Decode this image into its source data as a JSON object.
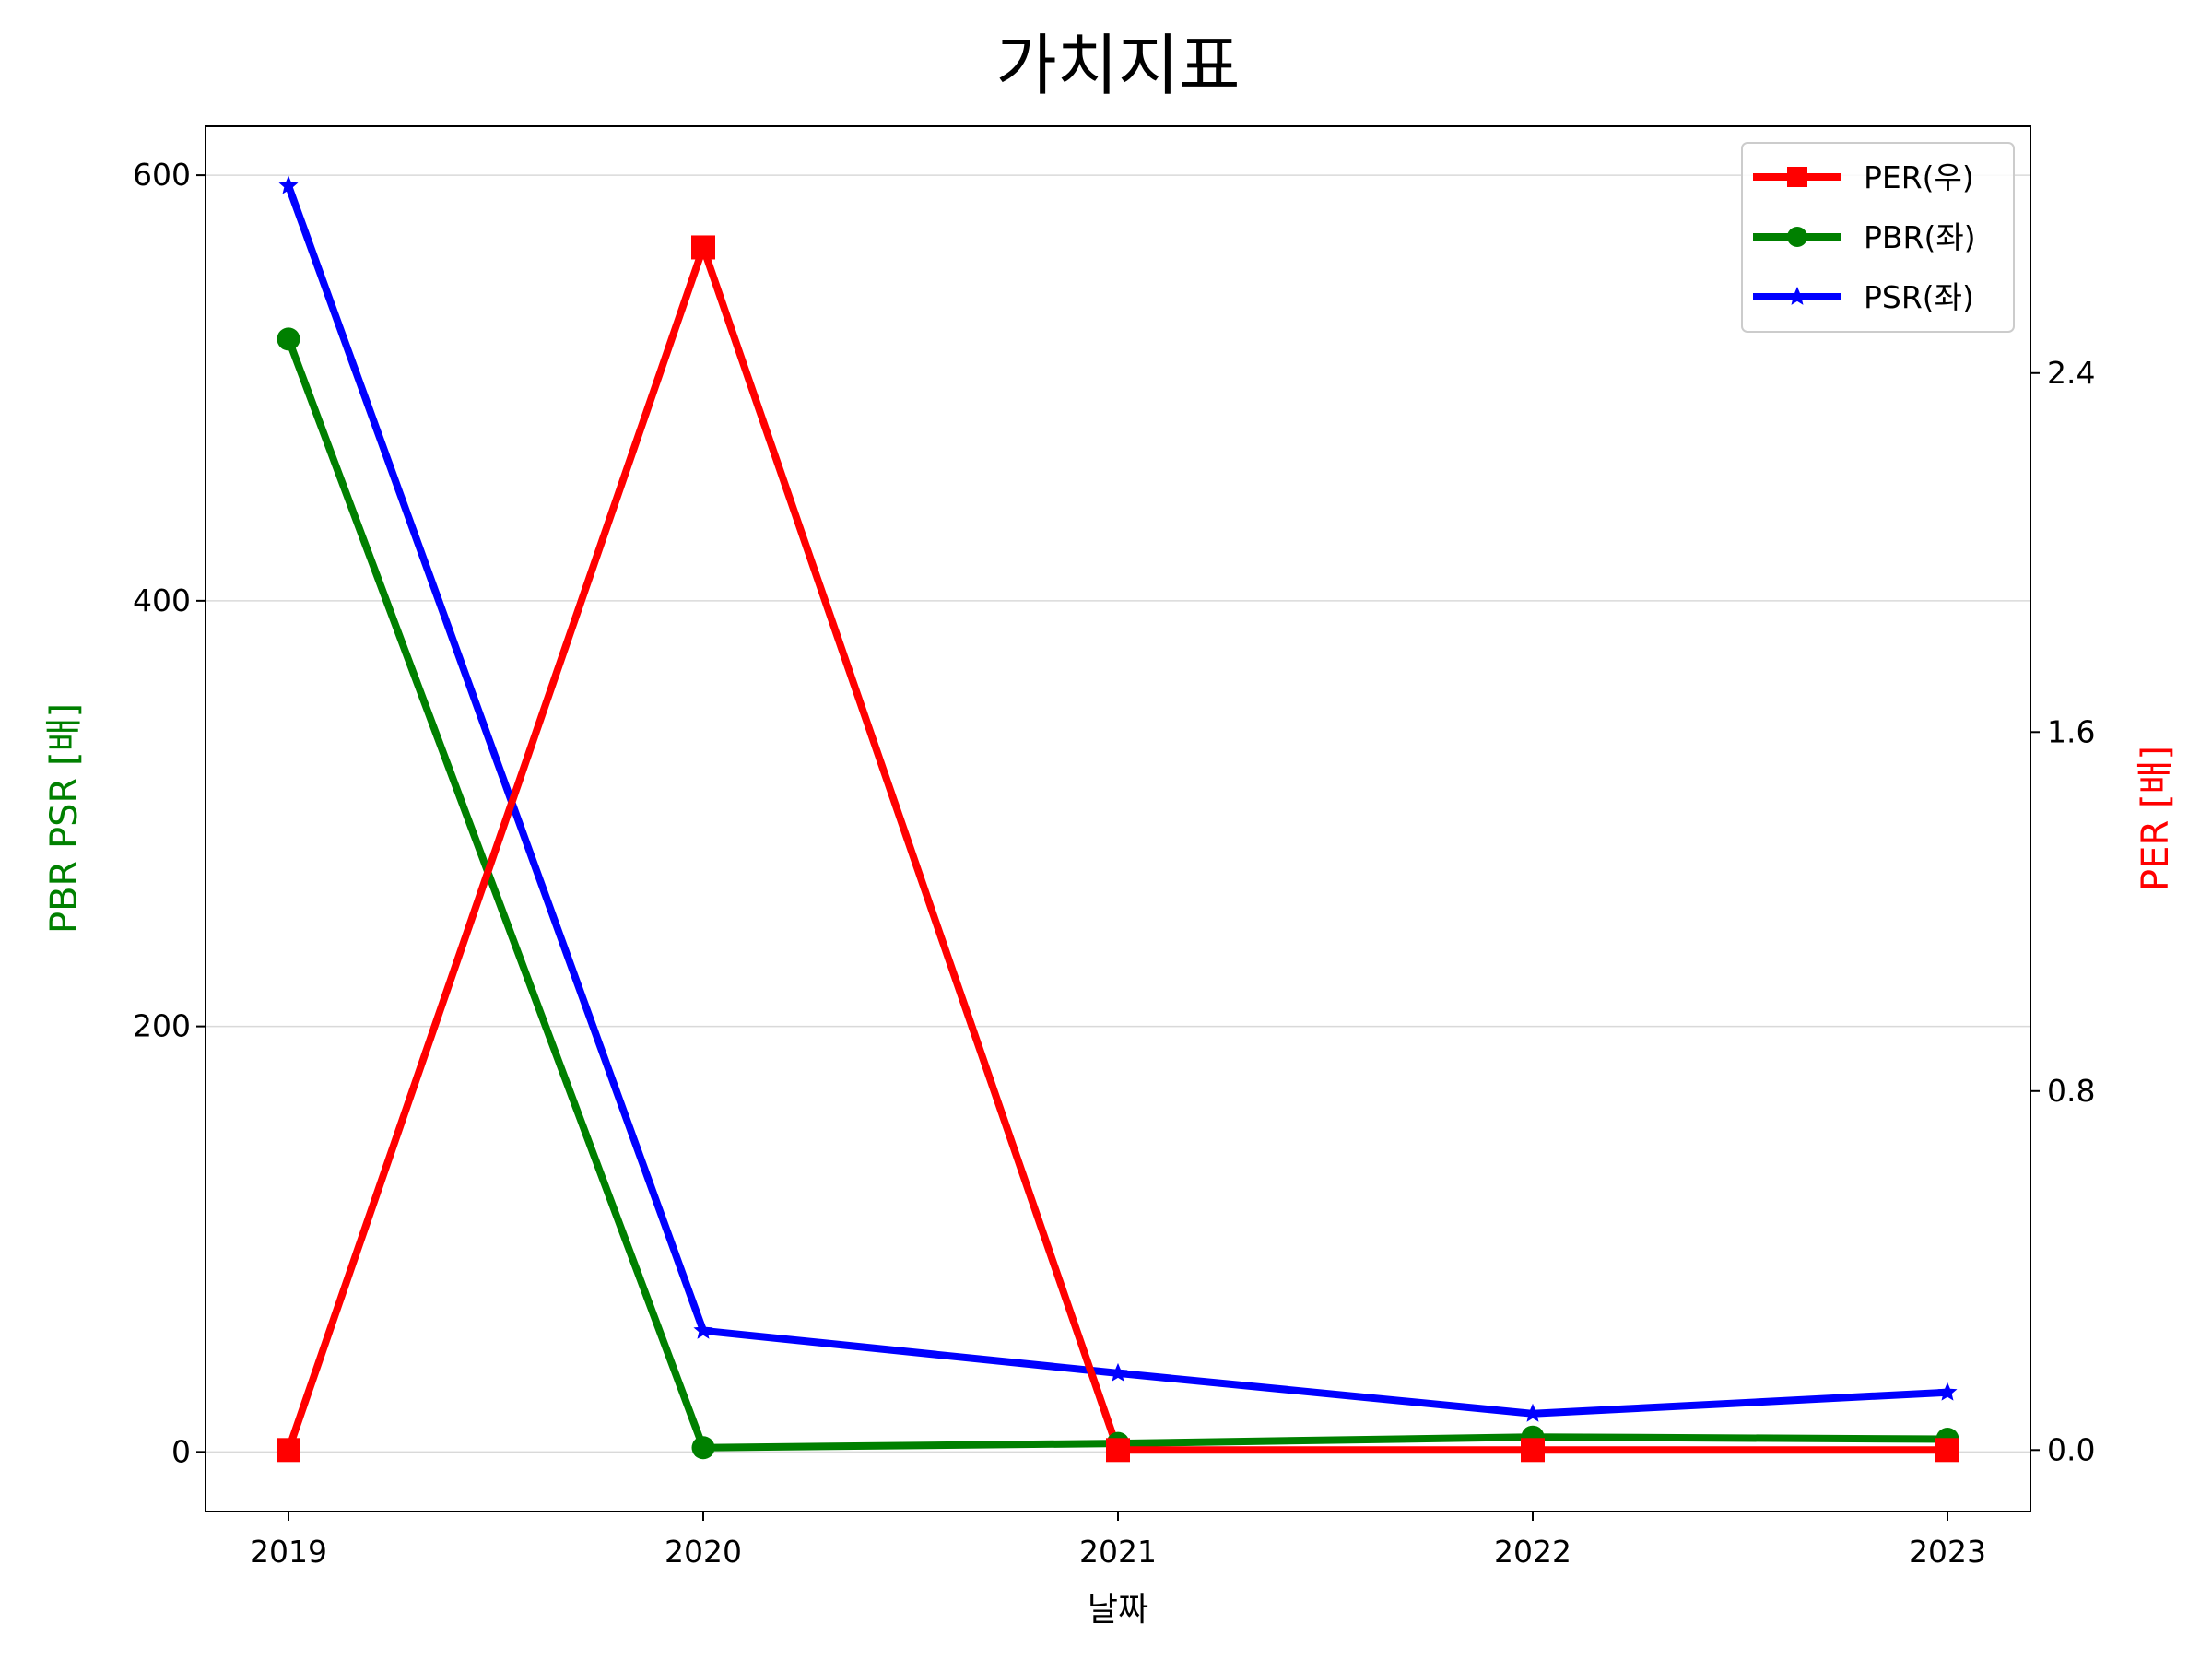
{
  "chart_data": {
    "type": "line",
    "title": "가치지표",
    "xlabel": "날짜",
    "ylabel_left": "PBR PSR [배]",
    "ylabel_right": "PER [배]",
    "ylabel_left_color": "#008000",
    "ylabel_right_color": "#ff0000",
    "categories": [
      "2019",
      "2020",
      "2021",
      "2022",
      "2023"
    ],
    "ylim_left": [
      -28,
      623
    ],
    "ylim_right": [
      -0.137,
      2.95
    ],
    "yticks_left": [
      "0",
      "200",
      "400",
      "600"
    ],
    "yticks_right": [
      "0.0",
      "0.8",
      "1.6",
      "2.4"
    ],
    "grid": "horizontal, left axis",
    "legend_position": "top-right",
    "series": [
      {
        "name": "PER(우)",
        "axis": "right",
        "color": "#ff0000",
        "marker": "square",
        "values": [
          0.0,
          2.68,
          0.0,
          0.0,
          0.0
        ]
      },
      {
        "name": "PBR(좌)",
        "axis": "left",
        "color": "#008000",
        "marker": "circle",
        "values": [
          523,
          2,
          4,
          7,
          6
        ]
      },
      {
        "name": "PSR(좌)",
        "axis": "left",
        "color": "#0000ff",
        "marker": "star",
        "values": [
          595,
          57,
          37,
          18,
          28
        ]
      }
    ]
  }
}
